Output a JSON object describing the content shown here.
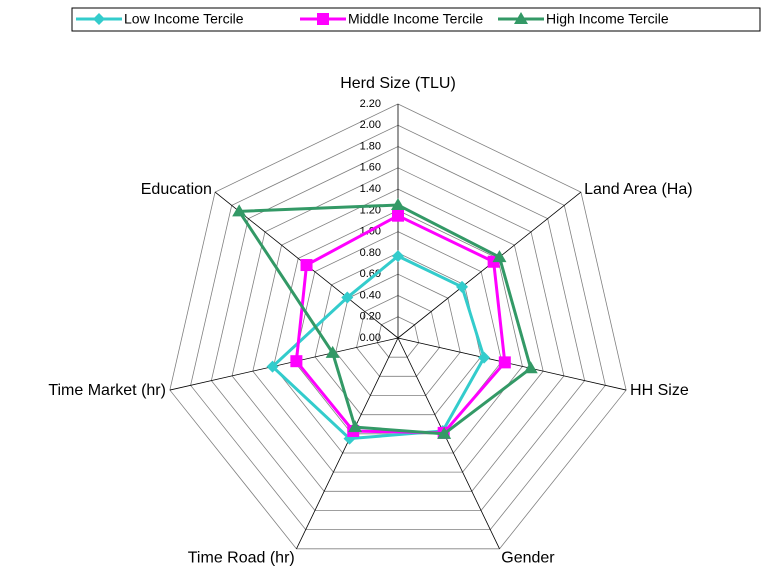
{
  "chart_data": {
    "type": "radar",
    "categories": [
      "Herd Size (TLU)",
      "Land Area (Ha)",
      "HH Size",
      "Gender",
      "Time Road (hr)",
      "Time Market (hr)",
      "Education"
    ],
    "ylim": [
      0,
      2.2
    ],
    "yticks": [
      {
        "value": 0,
        "label": "0.00"
      },
      {
        "value": 0.2,
        "label": "0.20"
      },
      {
        "value": 0.4,
        "label": "0.40"
      },
      {
        "value": 0.6,
        "label": "0.60"
      },
      {
        "value": 0.8,
        "label": "0.80"
      },
      {
        "value": 1,
        "label": "1.00"
      },
      {
        "value": 1.2,
        "label": "1.20"
      },
      {
        "value": 1.4,
        "label": "1.40"
      },
      {
        "value": 1.6,
        "label": "1.60"
      },
      {
        "value": 1.8,
        "label": "1.80"
      },
      {
        "value": 2,
        "label": "2.00"
      },
      {
        "value": 2.2,
        "label": "2.20"
      }
    ],
    "grid": true,
    "legend": "top",
    "series": [
      {
        "name": "Low Income Tercile",
        "color": "#33cccc",
        "marker": "diamond",
        "values": [
          0.77,
          0.77,
          0.83,
          0.97,
          1.05,
          1.21,
          0.61
        ]
      },
      {
        "name": "Middle Income Tercile",
        "color": "#ff00ff",
        "marker": "square",
        "values": [
          1.15,
          1.15,
          1.03,
          0.99,
          0.97,
          0.98,
          1.1
        ]
      },
      {
        "name": "High Income Tercile",
        "color": "#339966",
        "marker": "triangle",
        "values": [
          1.25,
          1.22,
          1.28,
          1.0,
          0.93,
          0.63,
          1.91
        ]
      }
    ]
  }
}
